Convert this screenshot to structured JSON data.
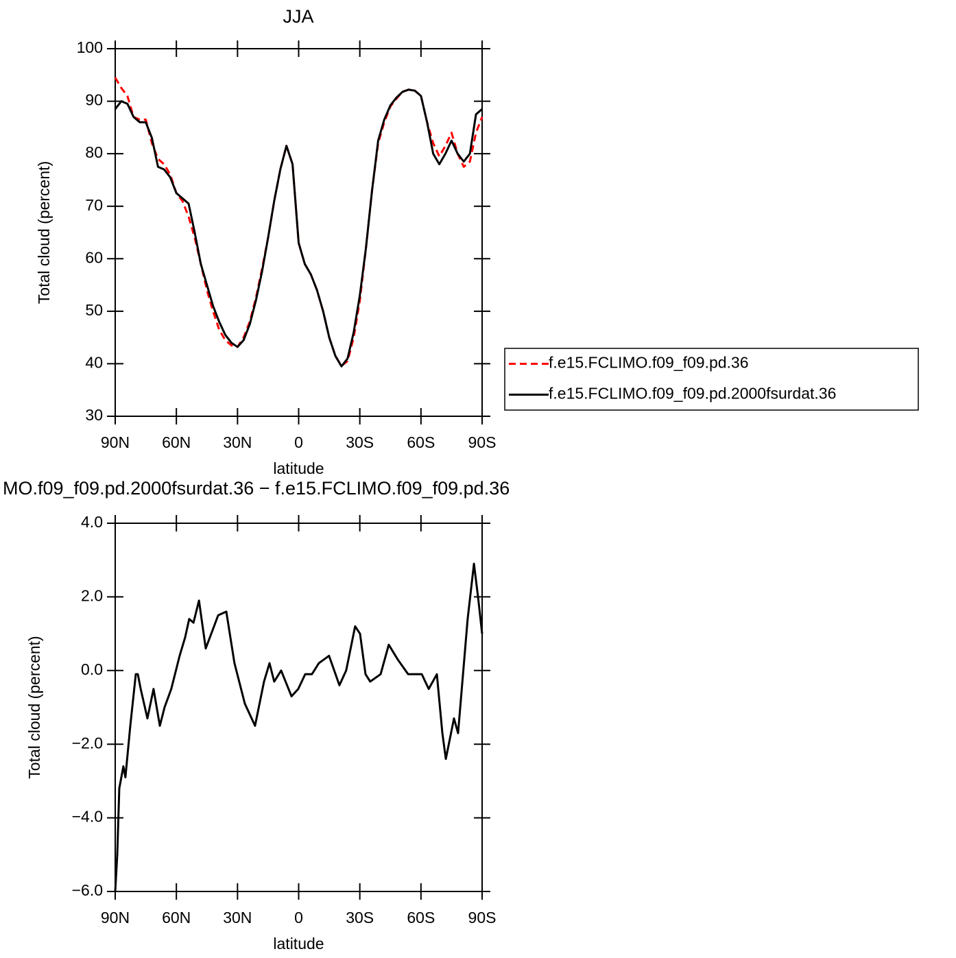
{
  "chart_data": [
    {
      "type": "line",
      "title": "JJA",
      "xlabel": "latitude",
      "ylabel": "Total cloud (percent)",
      "legend": "right",
      "xlim": [
        90,
        -90
      ],
      "ylim": [
        30,
        100
      ],
      "xticks": [
        {
          "value": 90,
          "label": "90N"
        },
        {
          "value": 60,
          "label": "60N"
        },
        {
          "value": 30,
          "label": "30N"
        },
        0,
        {
          "value": -30,
          "label": "30S"
        },
        {
          "value": -60,
          "label": "60S"
        },
        {
          "value": -90,
          "label": "90S"
        }
      ],
      "yticks": [
        30,
        40,
        50,
        60,
        70,
        80,
        90,
        100
      ],
      "x": [
        90,
        87,
        84,
        81,
        78,
        75,
        72,
        69,
        66,
        63,
        60,
        57,
        54,
        51,
        48,
        45,
        42,
        39,
        36,
        33,
        30,
        27,
        24,
        21,
        18,
        15,
        12,
        9,
        6,
        3,
        0,
        -3,
        -6,
        -9,
        -12,
        -15,
        -18,
        -21,
        -24,
        -27,
        -30,
        -33,
        -36,
        -39,
        -42,
        -45,
        -48,
        -51,
        -54,
        -57,
        -60,
        -63,
        -66,
        -69,
        -72,
        -75,
        -78,
        -81,
        -84,
        -87,
        -90
      ],
      "series": [
        {
          "name": "f.e15.FCLIMO.f09_f09.pd.36",
          "color": "#ff0000",
          "dash": true,
          "values": [
            94.5,
            92.5,
            91,
            87,
            86.5,
            86.5,
            82,
            79,
            78,
            76,
            72.5,
            71,
            68,
            64,
            59,
            54,
            50,
            46.5,
            44.5,
            43.5,
            43.2,
            45,
            48,
            52.5,
            58,
            64,
            71,
            77,
            81.5,
            78,
            63,
            59,
            57,
            54,
            50,
            45,
            41.5,
            39.6,
            40.5,
            45,
            52,
            62,
            73,
            82,
            86,
            89,
            90.5,
            91.8,
            92.2,
            92,
            91,
            86,
            82,
            79.5,
            81.5,
            84,
            80,
            77.5,
            78.5,
            84,
            87
          ]
        },
        {
          "name": "f.e15.FCLIMO.f09_f09.pd.2000fsurdat.36",
          "color": "#000000",
          "dash": false,
          "values": [
            88.5,
            90,
            89.5,
            87,
            86,
            86,
            83,
            77.5,
            77,
            75.5,
            72.5,
            71.5,
            70.5,
            65,
            59,
            55,
            51,
            48,
            45.5,
            44,
            43.2,
            44.5,
            47.5,
            52,
            57.5,
            64,
            71,
            77,
            81.5,
            78,
            63,
            59,
            57,
            54,
            50,
            45,
            41.5,
            39.5,
            41,
            46,
            53,
            62,
            73,
            82.5,
            86.5,
            89.2,
            90.7,
            91.8,
            92.2,
            92,
            91,
            86,
            80,
            78,
            80,
            82.5,
            80,
            78.5,
            80,
            87.5,
            88.5
          ]
        }
      ]
    },
    {
      "type": "line",
      "title": "MO.f09_f09.pd.2000fsurdat.36 − f.e15.FCLIMO.f09_f09.pd.36",
      "xlabel": "latitude",
      "ylabel": "Total cloud (percent)",
      "xlim": [
        90,
        -90
      ],
      "ylim": [
        -6,
        4
      ],
      "xticks": [
        {
          "value": 90,
          "label": "90N"
        },
        {
          "value": 60,
          "label": "60N"
        },
        {
          "value": 30,
          "label": "30N"
        },
        0,
        {
          "value": -30,
          "label": "30S"
        },
        {
          "value": -60,
          "label": "60S"
        },
        {
          "value": -90,
          "label": "90S"
        }
      ],
      "yticks": [
        {
          "value": -6,
          "label": "−6.0"
        },
        {
          "value": -4,
          "label": "−4.0"
        },
        {
          "value": -2,
          "label": "−2.0"
        },
        {
          "value": 0,
          "label": "0.0"
        },
        {
          "value": 2,
          "label": "2.0"
        },
        {
          "value": 4,
          "label": "4.0"
        }
      ],
      "x": [
        90,
        89,
        88,
        86,
        85,
        82.6,
        79.9,
        78.9,
        77.5,
        74.2,
        71.2,
        68.1,
        65.8,
        62.5,
        58.4,
        55.7,
        53.7,
        51.6,
        48.9,
        45.6,
        42.2,
        39.5,
        35.5,
        31.5,
        26.4,
        21.4,
        17,
        14.3,
        12,
        8.6,
        3.5,
        0.2,
        -3.2,
        -6.5,
        -9.9,
        -14.9,
        -20,
        -23.3,
        -27.7,
        -30.1,
        -32.8,
        -35.1,
        -40.2,
        -44.2,
        -48.6,
        -53.7,
        -60.4,
        -63.8,
        -67.8,
        -70.5,
        -72.2,
        -76.2,
        -78.2,
        -82.9,
        -86,
        -88,
        -90
      ],
      "series": [
        {
          "color": "#000000",
          "dash": false,
          "values": [
            -6,
            -5,
            -3.2,
            -2.6,
            -2.9,
            -1.5,
            -0.1,
            -0.1,
            -0.5,
            -1.3,
            -0.5,
            -1.5,
            -1,
            -0.5,
            0.4,
            0.9,
            1.4,
            1.3,
            1.9,
            0.6,
            1.1,
            1.5,
            1.6,
            0.2,
            -0.9,
            -1.5,
            -0.3,
            0.2,
            -0.3,
            0,
            -0.7,
            -0.5,
            -0.1,
            -0.1,
            0.2,
            0.4,
            -0.4,
            0,
            1.2,
            1,
            -0.1,
            -0.3,
            -0.1,
            0.7,
            0.3,
            -0.1,
            -0.1,
            -0.5,
            -0.1,
            -1.7,
            -2.4,
            -1.3,
            -1.7,
            1.4,
            2.9,
            2,
            1
          ]
        }
      ]
    }
  ]
}
